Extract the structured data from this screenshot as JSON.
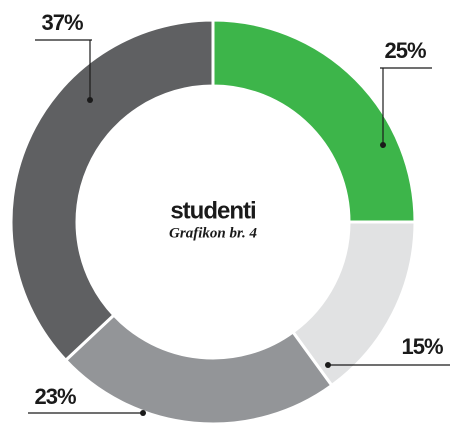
{
  "chart_data": {
    "type": "pie",
    "title": "studenti",
    "subtitle": "Grafikon br. 4",
    "values": [
      25,
      15,
      23,
      37
    ],
    "value_labels": [
      "25%",
      "15%",
      "23%",
      "37%"
    ],
    "colors": [
      "#3db54a",
      "#e1e2e3",
      "#939598",
      "#5f6062"
    ]
  }
}
